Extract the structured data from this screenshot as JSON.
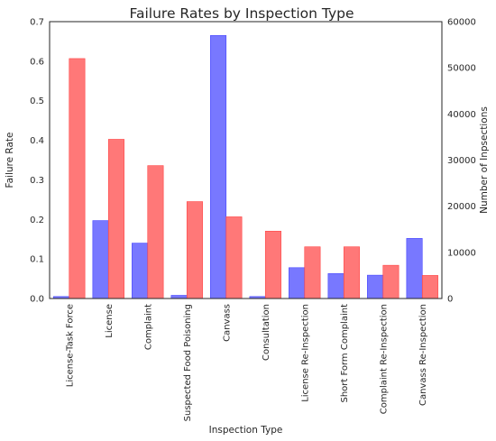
{
  "chart_data": {
    "type": "bar",
    "title": "Failure Rates by Inspection Type",
    "xlabel": "Inspection Type",
    "ylabel_left": "Failure Rate",
    "ylabel_right": "Number of Inpsections",
    "categories": [
      "License-Task Force",
      "License",
      "Complaint",
      "Suspected Food Poisoning",
      "Canvass",
      "Consultation",
      "License Re-Inspection",
      "Short Form Complaint",
      "Complaint Re-Inspection",
      "Canvass Re-Inspection"
    ],
    "series": [
      {
        "axis": "left",
        "color": "#4444ff",
        "values": [
          0.005,
          0.197,
          0.14,
          0.008,
          0.665,
          0.005,
          0.078,
          0.063,
          0.059,
          0.152
        ]
      },
      {
        "axis": "right",
        "color": "#ff4444",
        "values": [
          52000,
          34500,
          28800,
          21000,
          17700,
          14600,
          11200,
          11200,
          7200,
          5000
        ]
      }
    ],
    "ylim_left": [
      0,
      0.7
    ],
    "ylim_right": [
      0,
      60000
    ],
    "yticks_left": [
      "0.0",
      "0.1",
      "0.2",
      "0.3",
      "0.4",
      "0.5",
      "0.6",
      "0.7"
    ],
    "yticks_right": [
      "0",
      "10000",
      "20000",
      "30000",
      "40000",
      "50000",
      "60000"
    ],
    "grid": false,
    "legend": "none"
  }
}
